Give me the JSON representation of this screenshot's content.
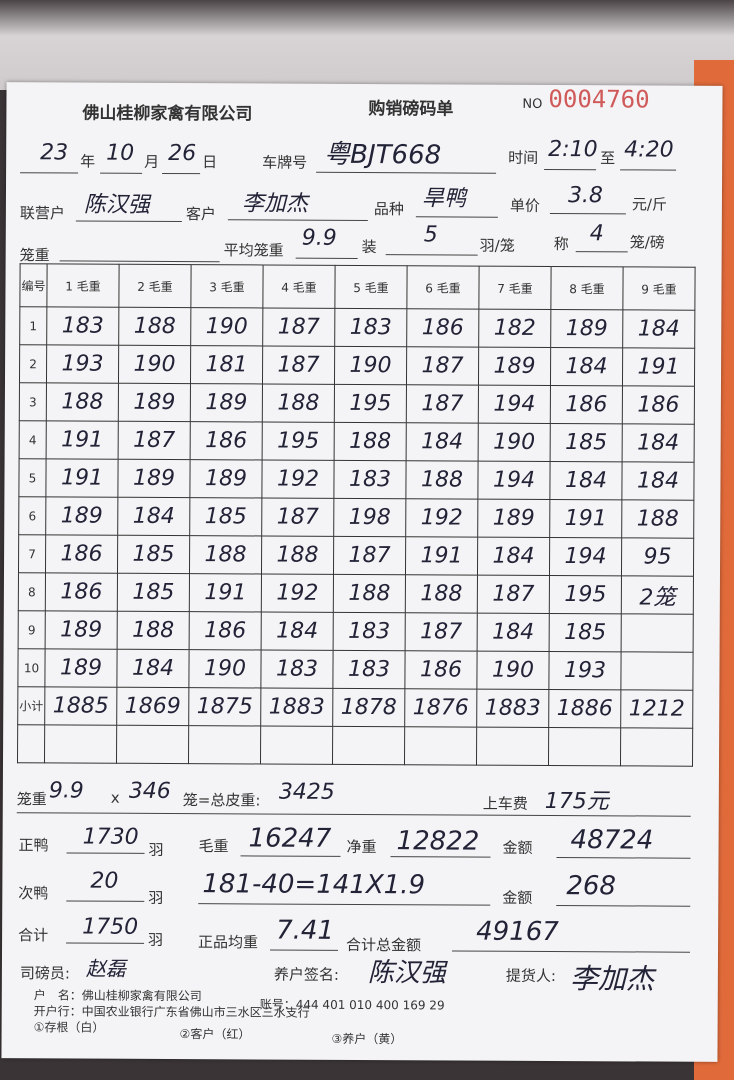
{
  "header": {
    "company": "佛山桂柳家禽有限公司",
    "form_title": "购销磅码单",
    "no_label": "NO",
    "serial": "0004760"
  },
  "fields": {
    "year": "23",
    "year_label": "年",
    "month": "10",
    "month_label": "月",
    "day": "26",
    "day_label": "日",
    "plate_label": "车牌号",
    "plate": "粤BJT668",
    "time_label": "时间",
    "time_from": "2:10",
    "to_label": "至",
    "time_to": "4:20",
    "partner_label": "联营户",
    "partner": "陈汉强",
    "customer_label": "客户",
    "customer": "李加杰",
    "variety_label": "品种",
    "variety": "旱鸭",
    "price_label": "单价",
    "price": "3.8",
    "price_unit": "元/斤",
    "cage_weight_label": "笼重",
    "cage_weight": "",
    "avg_cage_label": "平均笼重",
    "avg_cage": "9.9",
    "load_label": "装",
    "load": "5",
    "load_unit": "羽/笼",
    "weigh_label": "称",
    "weigh": "4",
    "weigh_unit": "笼/磅"
  },
  "table": {
    "headers": [
      "编号",
      "1 毛重",
      "2 毛重",
      "3 毛重",
      "4 毛重",
      "5 毛重",
      "6 毛重",
      "7 毛重",
      "8 毛重",
      "9 毛重"
    ],
    "rows": [
      {
        "n": "1",
        "v": [
          "183",
          "188",
          "190",
          "187",
          "183",
          "186",
          "182",
          "189",
          "184"
        ]
      },
      {
        "n": "2",
        "v": [
          "193",
          "190",
          "181",
          "187",
          "190",
          "187",
          "189",
          "184",
          "191"
        ]
      },
      {
        "n": "3",
        "v": [
          "188",
          "189",
          "189",
          "188",
          "195",
          "187",
          "194",
          "186",
          "186"
        ]
      },
      {
        "n": "4",
        "v": [
          "191",
          "187",
          "186",
          "195",
          "188",
          "184",
          "190",
          "185",
          "184"
        ]
      },
      {
        "n": "5",
        "v": [
          "191",
          "189",
          "189",
          "192",
          "183",
          "188",
          "194",
          "184",
          "184"
        ]
      },
      {
        "n": "6",
        "v": [
          "189",
          "184",
          "185",
          "187",
          "198",
          "192",
          "189",
          "191",
          "188"
        ]
      },
      {
        "n": "7",
        "v": [
          "186",
          "185",
          "188",
          "188",
          "187",
          "191",
          "184",
          "194",
          "95"
        ]
      },
      {
        "n": "8",
        "v": [
          "186",
          "185",
          "191",
          "192",
          "188",
          "188",
          "187",
          "195",
          "2笼"
        ]
      },
      {
        "n": "9",
        "v": [
          "189",
          "188",
          "186",
          "184",
          "183",
          "187",
          "184",
          "185",
          ""
        ]
      },
      {
        "n": "10",
        "v": [
          "189",
          "184",
          "190",
          "183",
          "183",
          "186",
          "190",
          "193",
          ""
        ]
      }
    ],
    "subtotal": {
      "n": "小计",
      "v": [
        "1885",
        "1869",
        "1875",
        "1883",
        "1878",
        "1876",
        "1883",
        "1886",
        "1212"
      ]
    }
  },
  "summary": {
    "cage_label": "笼重",
    "cage": "9.9",
    "x": "x",
    "cages": "346",
    "total_tare_label": "笼=总皮重:",
    "total_tare": "3425",
    "loading_fee_label": "上车费",
    "loading_fee": "175元",
    "grade1_label": "正鸭",
    "grade1": "1730",
    "bird_unit": "羽",
    "gross_label": "毛重",
    "gross": "16247",
    "net_label": "净重",
    "net": "12822",
    "amount_label": "金额",
    "amount1": "48724",
    "grade2_label": "次鸭",
    "grade2": "20",
    "calc": "181-40=141X1.9",
    "amount2": "268",
    "total_label": "合计",
    "total": "1750",
    "avg_label": "正品均重",
    "avg": "7.41",
    "grand_label": "合计总金额",
    "grand": "49167",
    "weigher_label": "司磅员:",
    "weigher": "赵磊",
    "farmer_sign_label": "养户签名:",
    "farmer_sign": "陈汉强",
    "pickup_label": "提货人:",
    "pickup": "李加杰"
  },
  "footer": {
    "account_name": "户　名：佛山桂柳家禽有限公司",
    "account_no": "账号：444 401 010 400 169 29",
    "bank": "开户行：中国农业银行广东省佛山市三水区三水支行",
    "copy1": "①存根（白）",
    "copy2": "②客户（红）",
    "copy3": "③养户（黄）"
  }
}
